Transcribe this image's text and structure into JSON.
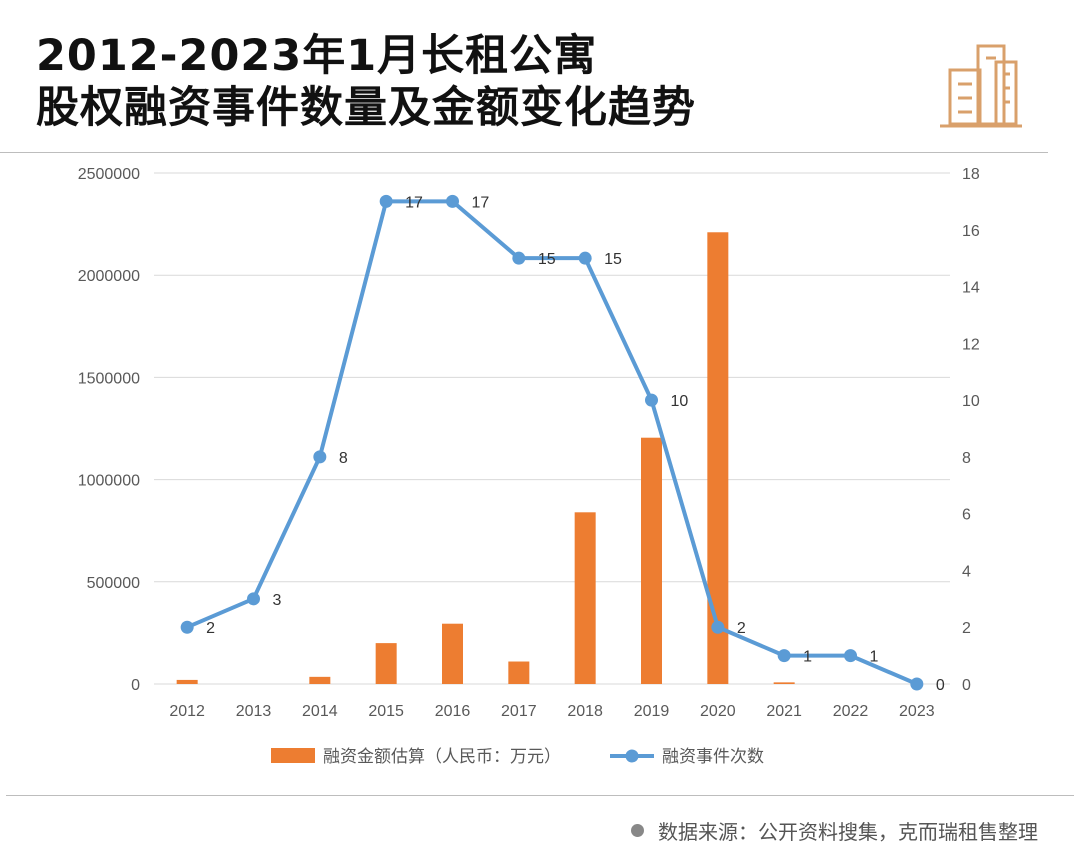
{
  "header": {
    "title_line1": "2012-2023年1月长租公寓",
    "title_line2": "股权融资事件数量及金额变化趋势",
    "logo_icon": "city-buildings-icon"
  },
  "colors": {
    "bar": "#ed7d31",
    "line": "#5b9bd5",
    "grid": "#d9d9d9",
    "axis_text": "#595959",
    "logo": "#d9a06b"
  },
  "chart_data": {
    "type": "bar+line",
    "title": "",
    "categories": [
      "2012",
      "2013",
      "2014",
      "2015",
      "2016",
      "2017",
      "2018",
      "2019",
      "2020",
      "2021",
      "2022",
      "2023"
    ],
    "series": [
      {
        "name": "融资金额估算（人民币：万元）",
        "type": "bar",
        "axis": "left",
        "values": [
          20000,
          0,
          35000,
          200000,
          295000,
          110000,
          840000,
          1205000,
          2210000,
          8000,
          0,
          0
        ]
      },
      {
        "name": "融资事件次数",
        "type": "line",
        "axis": "right",
        "values": [
          2,
          3,
          8,
          17,
          17,
          15,
          15,
          10,
          2,
          1,
          1,
          0
        ],
        "data_labels": [
          "2",
          "3",
          "8",
          "17",
          "17",
          "15",
          "15",
          "10",
          "2",
          "1",
          "1",
          "0"
        ]
      }
    ],
    "y_left": {
      "min": 0,
      "max": 2500000,
      "ticks": [
        "0",
        "500000",
        "1000000",
        "1500000",
        "2000000",
        "2500000"
      ]
    },
    "y_right": {
      "min": 0,
      "max": 18,
      "ticks": [
        "0",
        "2",
        "4",
        "6",
        "8",
        "10",
        "12",
        "14",
        "16",
        "18"
      ]
    },
    "grid": true,
    "legend_position": "bottom"
  },
  "footer": {
    "source": "数据来源：公开资料搜集，克而瑞租售整理"
  }
}
